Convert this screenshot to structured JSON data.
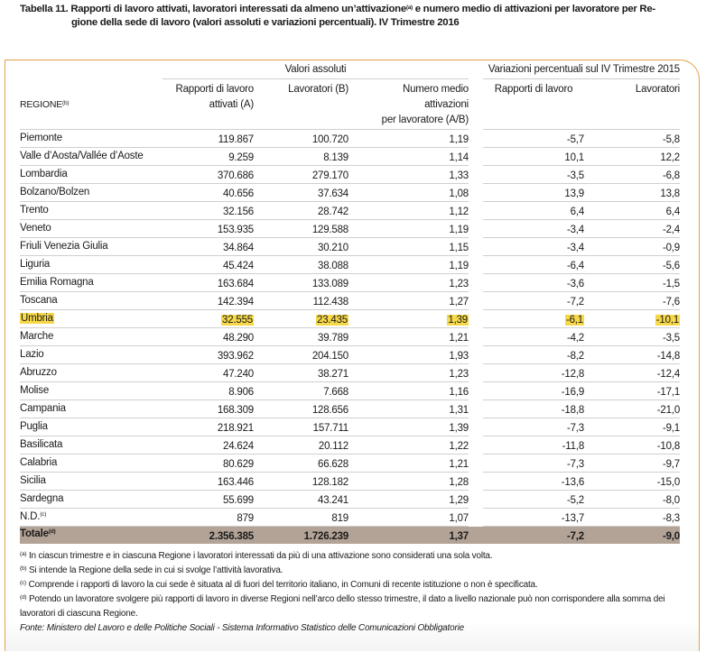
{
  "title": {
    "line1": "Tabella 11. Rapporti di lavoro attivati, lavoratori interessati da almeno un’attivazione",
    "line1_sup": "(a)",
    "line1_rest": " e numero medio di attivazioni per lavoratore per Re-",
    "line2": "gione della sede di lavoro (valori assoluti e variazioni percentuali). IV Trimestre 2016"
  },
  "header": {
    "group1": "Valori assoluti",
    "group2": "Variazioni percentuali sul IV Trimestre 2015",
    "regione": "REGIONE",
    "regione_sup": "(b)",
    "col_a": [
      "Rapporti di lavoro",
      "attivati (A)"
    ],
    "col_b": "Lavoratori (B)",
    "col_c": [
      "Numero medio",
      "attivazioni",
      "per lavoratore (A/B)"
    ],
    "col_d": "Rapporti di lavoro",
    "col_e": "Lavoratori"
  },
  "highlight_color": "#f6d84a",
  "rows": [
    {
      "name": "Piemonte",
      "a": "119.867",
      "b": "100.720",
      "c": "1,19",
      "d": "-5,7",
      "e": "-5,8"
    },
    {
      "name": "Valle d’Aosta/Vallée d’Aoste",
      "a": "9.259",
      "b": "8.139",
      "c": "1,14",
      "d": "10,1",
      "e": "12,2"
    },
    {
      "name": "Lombardia",
      "a": "370.686",
      "b": "279.170",
      "c": "1,33",
      "d": "-3,5",
      "e": "-6,8"
    },
    {
      "name": "Bolzano/Bolzen",
      "a": "40.656",
      "b": "37.634",
      "c": "1,08",
      "d": "13,9",
      "e": "13,8"
    },
    {
      "name": "Trento",
      "a": "32.156",
      "b": "28.742",
      "c": "1,12",
      "d": "6,4",
      "e": "6,4"
    },
    {
      "name": "Veneto",
      "a": "153.935",
      "b": "129.588",
      "c": "1,19",
      "d": "-3,4",
      "e": "-2,4"
    },
    {
      "name": "Friuli Venezia Giulia",
      "a": "34.864",
      "b": "30.210",
      "c": "1,15",
      "d": "-3,4",
      "e": "-0,9"
    },
    {
      "name": "Liguria",
      "a": "45.424",
      "b": "38.088",
      "c": "1,19",
      "d": "-6,4",
      "e": "-5,6"
    },
    {
      "name": "Emilia Romagna",
      "a": "163.684",
      "b": "133.089",
      "c": "1,23",
      "d": "-3,6",
      "e": "-1,5"
    },
    {
      "name": "Toscana",
      "a": "142.394",
      "b": "112.438",
      "c": "1,27",
      "d": "-7,2",
      "e": "-7,6"
    },
    {
      "name": "Umbria",
      "a": "32.555",
      "b": "23.435",
      "c": "1,39",
      "d": "-6,1",
      "e": "-10,1",
      "highlighted": true
    },
    {
      "name": "Marche",
      "a": "48.290",
      "b": "39.789",
      "c": "1,21",
      "d": "-4,2",
      "e": "-3,5"
    },
    {
      "name": "Lazio",
      "a": "393.962",
      "b": "204.150",
      "c": "1,93",
      "d": "-8,2",
      "e": "-14,8"
    },
    {
      "name": "Abruzzo",
      "a": "47.240",
      "b": "38.271",
      "c": "1,23",
      "d": "-12,8",
      "e": "-12,4"
    },
    {
      "name": "Molise",
      "a": "8.906",
      "b": "7.668",
      "c": "1,16",
      "d": "-16,9",
      "e": "-17,1"
    },
    {
      "name": "Campania",
      "a": "168.309",
      "b": "128.656",
      "c": "1,31",
      "d": "-18,8",
      "e": "-21,0"
    },
    {
      "name": "Puglia",
      "a": "218.921",
      "b": "157.711",
      "c": "1,39",
      "d": "-7,3",
      "e": "-9,1"
    },
    {
      "name": "Basilicata",
      "a": "24.624",
      "b": "20.112",
      "c": "1,22",
      "d": "-11,8",
      "e": "-10,8"
    },
    {
      "name": "Calabria",
      "a": "80.629",
      "b": "66.628",
      "c": "1,21",
      "d": "-7,3",
      "e": "-9,7"
    },
    {
      "name": "Sicilia",
      "a": "163.446",
      "b": "128.182",
      "c": "1,28",
      "d": "-13,6",
      "e": "-15,0"
    },
    {
      "name": "Sardegna",
      "a": "55.699",
      "b": "43.241",
      "c": "1,29",
      "d": "-5,2",
      "e": "-8,0"
    },
    {
      "name": "N.D.",
      "sup": "(c)",
      "a": "879",
      "b": "819",
      "c": "1,07",
      "d": "-13,7",
      "e": "-8,3"
    }
  ],
  "total": {
    "name": "Totale",
    "sup": "(d)",
    "a": "2.356.385",
    "b": "1.726.239",
    "c": "1,37",
    "d": "-7,2",
    "e": "-9,0"
  },
  "notes": [
    {
      "sup": "(a)",
      "text": " In ciascun trimestre e in ciascuna Regione i lavoratori interessati da più di una attivazione sono considerati una sola volta."
    },
    {
      "sup": "(b)",
      "text": " Si intende la Regione della sede in cui si svolge l’attività lavorativa."
    },
    {
      "sup": "(c)",
      "text": " Comprende i rapporti di lavoro la cui sede è situata al di fuori del territorio italiano, in Comuni di recente istituzione o non è specificata."
    },
    {
      "sup": "(d)",
      "text": " Potendo un lavoratore svolgere più rapporti di lavoro in diverse Regioni nell’arco dello stesso trimestre, il dato a livello nazionale può non corrispondere alla somma dei lavoratori di ciascuna Regione."
    }
  ],
  "source": "Fonte: Ministero del Lavoro e delle Politiche Sociali - Sistema Informativo Statistico delle Comunicazioni Obbligatorie"
}
